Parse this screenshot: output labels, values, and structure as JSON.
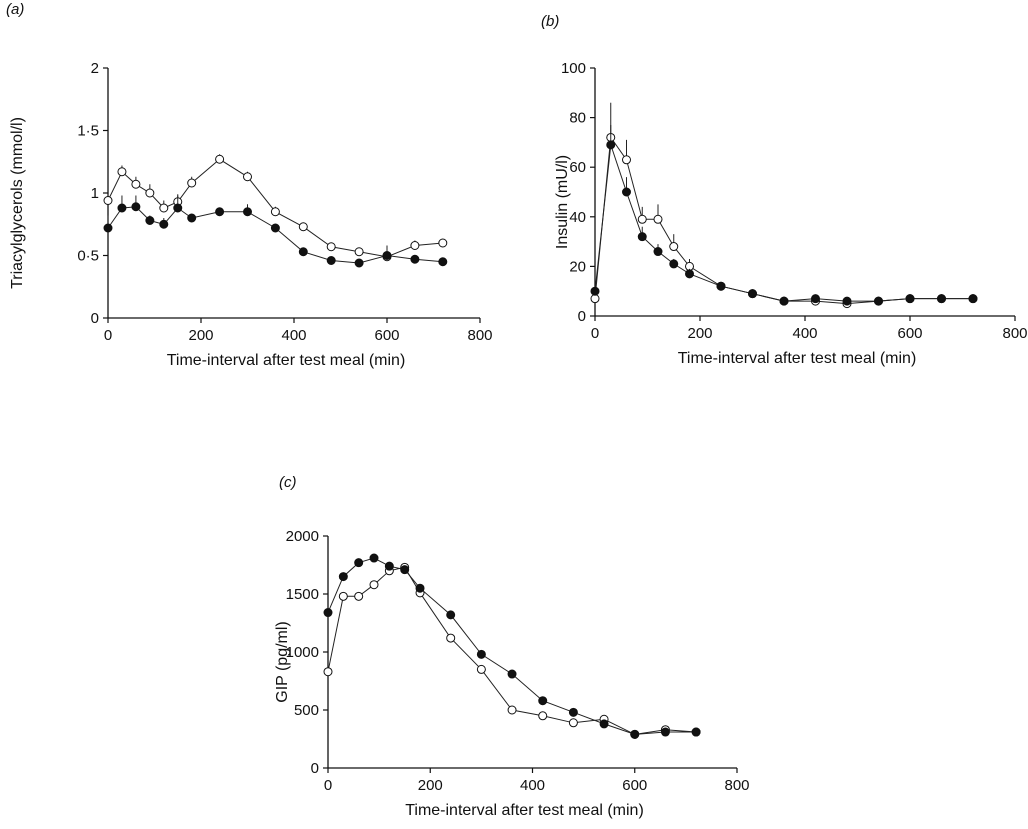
{
  "chart_data": [
    {
      "panel": "(a)",
      "type": "line",
      "xlabel": "Time-interval after test meal (min)",
      "ylabel": "Triacylglycerols (mmol/l)",
      "xlim": [
        0,
        800
      ],
      "ylim": [
        0,
        2
      ],
      "xticks": [
        0,
        200,
        400,
        600,
        800
      ],
      "yticks": [
        0,
        0.5,
        1,
        1.5,
        2
      ],
      "ytick_labels": [
        "0",
        "0·5",
        "1",
        "1·5",
        "2"
      ],
      "grid": false,
      "series": [
        {
          "marker": "open-circle",
          "x": [
            0,
            30,
            60,
            90,
            120,
            150,
            180,
            240,
            300,
            360,
            420,
            480,
            540,
            600,
            660,
            720
          ],
          "y": [
            0.94,
            1.17,
            1.07,
            1.0,
            0.88,
            0.93,
            1.08,
            1.27,
            1.13,
            0.85,
            0.73,
            0.57,
            0.53,
            0.49,
            0.58,
            0.6
          ],
          "err": [
            0.05,
            0.05,
            0.06,
            0.07,
            0.06,
            0.06,
            0.05,
            0.04,
            0.04,
            0.04,
            0.03,
            0.03,
            0.02,
            0.03,
            0.04,
            0.02
          ]
        },
        {
          "marker": "filled-circle",
          "x": [
            0,
            30,
            60,
            90,
            120,
            150,
            180,
            240,
            300,
            360,
            420,
            480,
            540,
            600,
            660,
            720
          ],
          "y": [
            0.72,
            0.88,
            0.89,
            0.78,
            0.75,
            0.88,
            0.8,
            0.85,
            0.85,
            0.72,
            0.53,
            0.46,
            0.44,
            0.5,
            0.47,
            0.45
          ],
          "err": [
            0.1,
            0.1,
            0.09,
            0.04,
            0.05,
            0.1,
            0.03,
            0.03,
            0.06,
            0.03,
            0.02,
            0.02,
            0.02,
            0.08,
            0.02,
            0.02
          ]
        }
      ]
    },
    {
      "panel": "(b)",
      "type": "line",
      "xlabel": "Time-interval after test meal (min)",
      "ylabel": "Insulin (mU/l)",
      "xlim": [
        0,
        800
      ],
      "ylim": [
        0,
        100
      ],
      "xticks": [
        0,
        200,
        400,
        600,
        800
      ],
      "yticks": [
        0,
        20,
        40,
        60,
        80,
        100
      ],
      "ytick_labels": [
        "0",
        "20",
        "40",
        "60",
        "80",
        "100"
      ],
      "grid": false,
      "series": [
        {
          "marker": "open-circle",
          "x": [
            0,
            30,
            60,
            90,
            120,
            150,
            180,
            240,
            300,
            360,
            420,
            480,
            540,
            600,
            660,
            720
          ],
          "y": [
            7,
            72,
            63,
            39,
            39,
            28,
            20,
            12,
            9,
            6,
            6,
            5,
            6,
            7,
            7,
            7
          ],
          "err": [
            2,
            14,
            8,
            5,
            6,
            5,
            3,
            1,
            1,
            1,
            1,
            1,
            1,
            1,
            1,
            1
          ]
        },
        {
          "marker": "filled-circle",
          "x": [
            0,
            30,
            60,
            90,
            120,
            150,
            180,
            240,
            300,
            360,
            420,
            480,
            540,
            600,
            660,
            720
          ],
          "y": [
            10,
            69,
            50,
            32,
            26,
            21,
            17,
            12,
            9,
            6,
            7,
            6,
            6,
            7,
            7,
            7
          ],
          "err": [
            2,
            8,
            6,
            4,
            3,
            2,
            2,
            1,
            1,
            1,
            1,
            1,
            1,
            1,
            1,
            1
          ]
        }
      ]
    },
    {
      "panel": "(c)",
      "type": "line",
      "xlabel": "Time-interval after test meal (min)",
      "ylabel": "GIP (pg/ml)",
      "xlim": [
        0,
        800
      ],
      "ylim": [
        0,
        2000
      ],
      "xticks": [
        0,
        200,
        400,
        600,
        800
      ],
      "yticks": [
        0,
        500,
        1000,
        1500,
        2000
      ],
      "ytick_labels": [
        "0",
        "500",
        "1000",
        "1500",
        "2000"
      ],
      "grid": false,
      "series": [
        {
          "marker": "open-circle",
          "x": [
            0,
            30,
            60,
            90,
            120,
            150,
            180,
            240,
            300,
            360,
            420,
            480,
            540,
            600,
            660,
            720
          ],
          "y": [
            830,
            1480,
            1480,
            1580,
            1700,
            1730,
            1510,
            1120,
            850,
            500,
            450,
            390,
            420,
            290,
            330,
            310
          ],
          "err": []
        },
        {
          "marker": "filled-circle",
          "x": [
            0,
            30,
            60,
            90,
            120,
            150,
            180,
            240,
            300,
            360,
            420,
            480,
            540,
            600,
            660,
            720
          ],
          "y": [
            1340,
            1650,
            1770,
            1810,
            1740,
            1710,
            1550,
            1320,
            980,
            810,
            580,
            480,
            380,
            290,
            310,
            310
          ],
          "err": []
        }
      ]
    }
  ]
}
